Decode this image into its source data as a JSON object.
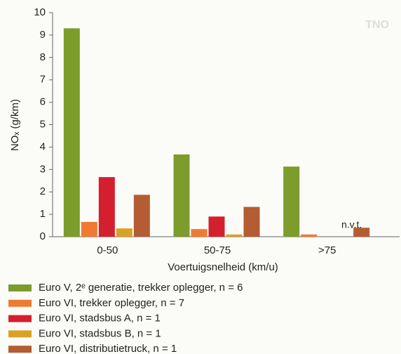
{
  "chart_data": {
    "type": "bar",
    "watermark": "TNO",
    "y_label": "NOₓ (g/km)",
    "x_label": "Voertuigsnelheid (km/u)",
    "categories": [
      "0-50",
      "50-75",
      ">75"
    ],
    "series": [
      {
        "name": "Euro V, 2ᵉ generatie, trekker oplegger, n = 6",
        "color": "#7c9c2c",
        "values": [
          9.3,
          3.67,
          3.13
        ]
      },
      {
        "name": "Euro VI, trekker oplegger, n = 7",
        "color": "#f07a32",
        "values": [
          0.66,
          0.34,
          0.1
        ]
      },
      {
        "name": "Euro VI, stadsbus A, n = 1",
        "color": "#d4202e",
        "values": [
          2.66,
          0.9,
          null
        ]
      },
      {
        "name": "Euro VI, stadsbus B, n = 1",
        "color": "#d9a224",
        "values": [
          0.37,
          0.1,
          null
        ]
      },
      {
        "name": "Euro VI, distributietruck, n = 1",
        "color": "#b45c32",
        "values": [
          1.87,
          1.33,
          0.4
        ]
      }
    ],
    "annotations": [
      {
        "text": "n.v.t.",
        "category": 2
      }
    ],
    "ylim": [
      0,
      10
    ],
    "yticks": [
      0,
      1,
      2,
      3,
      4,
      5,
      6,
      7,
      8,
      9,
      10
    ],
    "grid": false
  }
}
